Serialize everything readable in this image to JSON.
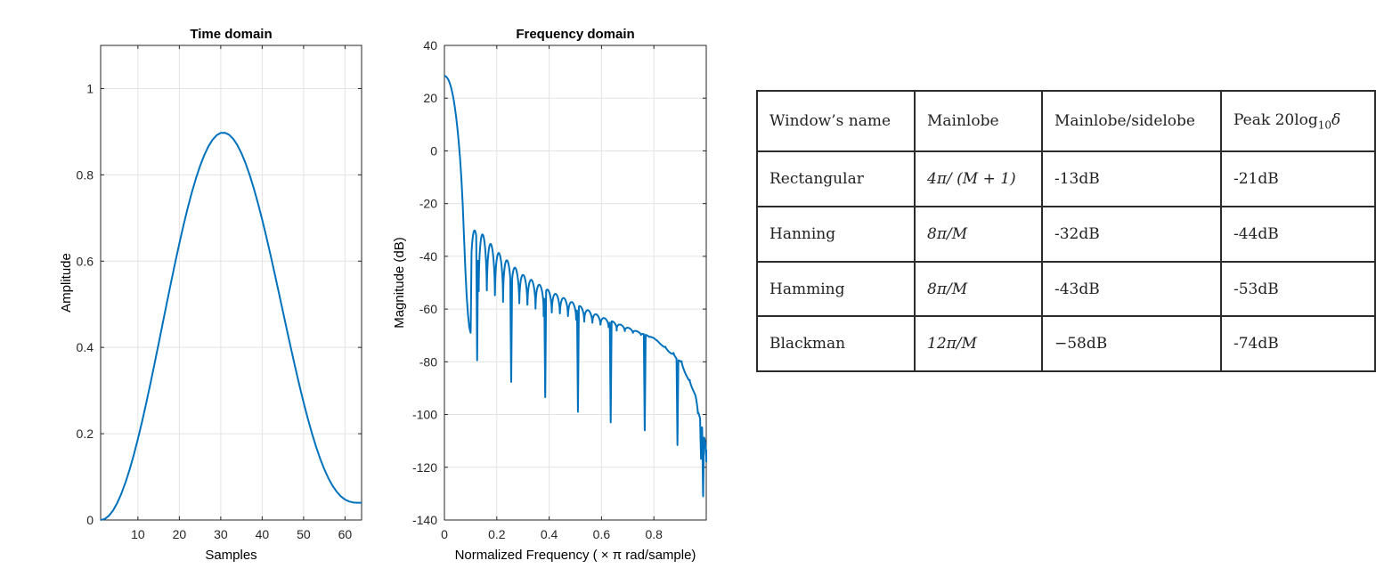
{
  "chart_data": [
    {
      "type": "line",
      "title": "Time domain",
      "xlabel": "Samples",
      "ylabel": "Amplitude",
      "xlim": [
        1,
        64
      ],
      "ylim": [
        0,
        1.1
      ],
      "xticks": [
        10,
        20,
        30,
        40,
        50,
        60
      ],
      "yticks": [
        0,
        0.2,
        0.4,
        0.6,
        0.8,
        1
      ],
      "grid": true,
      "series": [
        {
          "color": "#0072bd",
          "x": [
            1,
            2,
            3,
            4,
            5,
            6,
            7,
            8,
            9,
            10,
            11,
            12,
            13,
            14,
            15,
            16,
            17,
            18,
            19,
            20,
            21,
            22,
            23,
            24,
            25,
            26,
            27,
            28,
            29,
            30,
            31,
            32,
            33,
            34,
            35,
            36,
            37,
            38,
            39,
            40,
            41,
            42,
            43,
            44,
            45,
            46,
            47,
            48,
            49,
            50,
            51,
            52,
            53,
            54,
            55,
            56,
            57,
            58,
            59,
            60,
            61,
            62,
            63,
            64
          ],
          "y": [
            0.0,
            0.0025,
            0.0099,
            0.0222,
            0.0393,
            0.061,
            0.087,
            0.117,
            0.1508,
            0.188,
            0.228,
            0.2707,
            0.3153,
            0.3615,
            0.4087,
            0.4564,
            0.504,
            0.551,
            0.5968,
            0.641,
            0.683,
            0.7224,
            0.7587,
            0.7915,
            0.8205,
            0.8453,
            0.8656,
            0.8811,
            0.8917,
            0.8972,
            0.8976,
            0.893,
            0.8834,
            0.869,
            0.8499,
            0.8265,
            0.799,
            0.7679,
            0.7335,
            0.6962,
            0.6565,
            0.6149,
            0.5719,
            0.5279,
            0.4835,
            0.4392,
            0.3955,
            0.3528,
            0.3117,
            0.2725,
            0.2356,
            0.2014,
            0.1702,
            0.1422,
            0.1176,
            0.0966,
            0.0792,
            0.0653,
            0.0548,
            0.0474,
            0.0429,
            0.0406,
            0.04,
            0.04
          ]
        }
      ]
    },
    {
      "type": "line",
      "title": "Frequency domain",
      "xlabel": "Normalized Frequency  ( × π rad/sample)",
      "ylabel": "Magnitude (dB)",
      "xlim": [
        0,
        1
      ],
      "ylim": [
        -140,
        40
      ],
      "xticks": [
        0,
        0.2,
        0.4,
        0.6,
        0.8
      ],
      "yticks": [
        40,
        20,
        0,
        -20,
        -40,
        -60,
        -80,
        -100,
        -120,
        -140
      ],
      "grid": true,
      "series": [
        {
          "color": "#0072bd",
          "mainlobe": {
            "x": [
              0,
              0.005,
              0.01,
              0.015,
              0.02,
              0.025,
              0.03,
              0.035,
              0.04,
              0.045,
              0.05,
              0.055,
              0.06,
              0.065,
              0.07,
              0.075,
              0.08,
              0.085,
              0.09,
              0.095,
              0.1
            ],
            "y": [
              28.5,
              28.3,
              27.8,
              27,
              25.8,
              24.2,
              22.1,
              19.6,
              16.4,
              12.7,
              8.2,
              3,
              -3.2,
              -10.8,
              -20.5,
              -33,
              -45,
              -55,
              -62,
              -67,
              -69
            ]
          },
          "sidelobe_peak": {
            "x": [
              0.11,
              0.125,
              0.14,
              0.2,
              0.3,
              0.4,
              0.5,
              0.6,
              0.7,
              0.8,
              0.9,
              0.96,
              0.99
            ],
            "y": [
              -30,
              -30.5,
              -31,
              -38,
              -47,
              -53,
              -58,
              -63,
              -67,
              -71,
              -80,
              -93,
              -108
            ]
          },
          "sidelobe_null": {
            "x": [
              0.1,
              0.2,
              0.4,
              0.6,
              0.8,
              0.9,
              0.95,
              1
            ],
            "y": [
              -58,
              -60,
              -63,
              -67,
              -71,
              -78,
              -90,
              -118
            ]
          },
          "sidelobe_spacing": 0.031,
          "deep_nulls": [
            {
              "x": 0.1,
              "y": -70
            },
            {
              "x": 0.125,
              "y": -80
            },
            {
              "x": 0.255,
              "y": -88
            },
            {
              "x": 0.385,
              "y": -95
            },
            {
              "x": 0.51,
              "y": -100
            },
            {
              "x": 0.635,
              "y": -104
            },
            {
              "x": 0.765,
              "y": -108
            },
            {
              "x": 0.89,
              "y": -112
            },
            {
              "x": 0.98,
              "y": -117
            },
            {
              "x": 0.988,
              "y": -132
            },
            {
              "x": 0.995,
              "y": -108
            }
          ],
          "end_value": {
            "x": 1,
            "y": -118
          }
        }
      ]
    }
  ],
  "table": {
    "headers": [
      "Window’s name",
      "Mainlobe",
      "Mainlobe/sidelobe",
      "Peak 20log"
    ],
    "peak_subscript": "10",
    "peak_symbol": "δ",
    "rows": [
      {
        "name": "Rectangular",
        "mainlobe": "4π/ (M + 1)",
        "ratio": "-13dB",
        "peak": "-21dB"
      },
      {
        "name": "Hanning",
        "mainlobe": "8π/M",
        "ratio": "-32dB",
        "peak": "-44dB"
      },
      {
        "name": "Hamming",
        "mainlobe": "8π/M",
        "ratio": "-43dB",
        "peak": "-53dB"
      },
      {
        "name": "Blackman",
        "mainlobe": "12π/M",
        "ratio": "−58dB",
        "peak": "-74dB"
      }
    ]
  }
}
